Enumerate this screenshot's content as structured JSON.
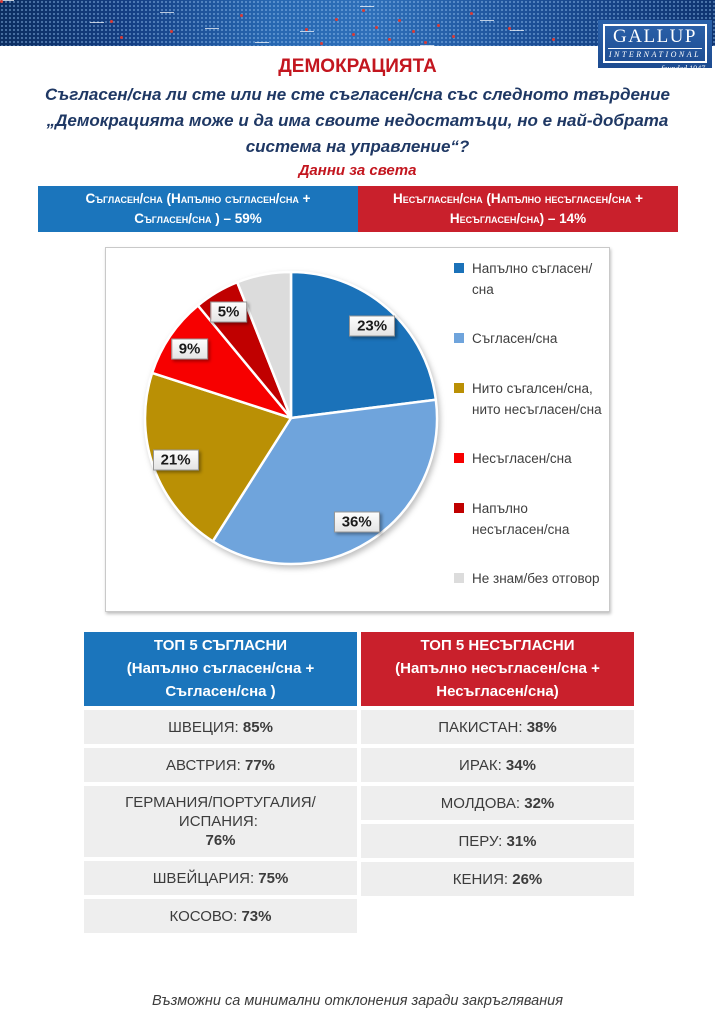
{
  "logo": {
    "name": "GALLUP",
    "subname": "INTERNATIONAL",
    "tagline": "founded 1947"
  },
  "page": {
    "title": "ДЕМОКРАЦИЯТА",
    "question_lines": [
      "Съгласен/сна ли сте или не сте съгласен/сна със следното твърдение",
      "„Демокрацията може и да има своите недостатъци, но е най-добрата",
      "система на управление“?"
    ],
    "subtitle": "Данни за света",
    "footer_note": "Възможни са минимални отклонения заради закръглявания"
  },
  "summary_banners": {
    "agree": {
      "lines": [
        "Съгласен/сна (Напълно съгласен/сна +",
        "Съгласен/сна ) – 59%"
      ],
      "color": "#1B75BC"
    },
    "disagree": {
      "lines": [
        "Несъгласен/сна (Напълно несъгласен/сна +",
        "Несъгласен/сна) – 14%"
      ],
      "color": "#C9202C"
    }
  },
  "chart_data": {
    "type": "pie",
    "direction": "clockwise",
    "start_angle_deg": 0,
    "legend_position": "right",
    "slices": [
      {
        "label": "Напълно съгласен/сна",
        "value": 23,
        "data_label": "23%",
        "color": "#1B72B9"
      },
      {
        "label": "Съгласен/сна",
        "value": 36,
        "data_label": "36%",
        "color": "#6FA4DC"
      },
      {
        "label": "Нито съгалсен/сна, нито несъгласен/сна",
        "value": 21,
        "data_label": "21%",
        "color": "#BA9005"
      },
      {
        "label": "Несъгласен/сна",
        "value": 9,
        "data_label": "9%",
        "color": "#F70000"
      },
      {
        "label": "Напълно несъгласен/сна",
        "value": 5,
        "data_label": "5%",
        "color": "#C00000"
      },
      {
        "label": "Не знам/без отговор",
        "value": 6,
        "data_label": "",
        "color": "#DCDCDC"
      }
    ]
  },
  "tables": {
    "agree": {
      "header_lines": [
        "ТОП 5 СЪГЛАСНИ",
        "(Напълно съгласен/сна +",
        "Съгласен/сна )"
      ],
      "color": "#1B75BC",
      "rows": [
        {
          "name": "ШВЕЦИЯ",
          "value": "85%"
        },
        {
          "name": "АВСТРИЯ",
          "value": "77%"
        },
        {
          "name": "ГЕРМАНИЯ/ПОРТУГАЛИЯ/ИСПАНИЯ",
          "value": "76%"
        },
        {
          "name": "ШВЕЙЦАРИЯ",
          "value": "75%"
        },
        {
          "name": "КОСОВО",
          "value": "73%"
        }
      ]
    },
    "disagree": {
      "header_lines": [
        "ТОП 5 НЕСЪГЛАСНИ",
        "(Напълно несъгласен/сна +",
        "Несъгласен/сна)"
      ],
      "color": "#C9202C",
      "rows": [
        {
          "name": "ПАКИСТАН",
          "value": "38%"
        },
        {
          "name": "ИРАК",
          "value": "34%"
        },
        {
          "name": "МОЛДОВА",
          "value": "32%"
        },
        {
          "name": "ПЕРУ",
          "value": "31%"
        },
        {
          "name": "КЕНИЯ",
          "value": "26%"
        }
      ]
    }
  }
}
